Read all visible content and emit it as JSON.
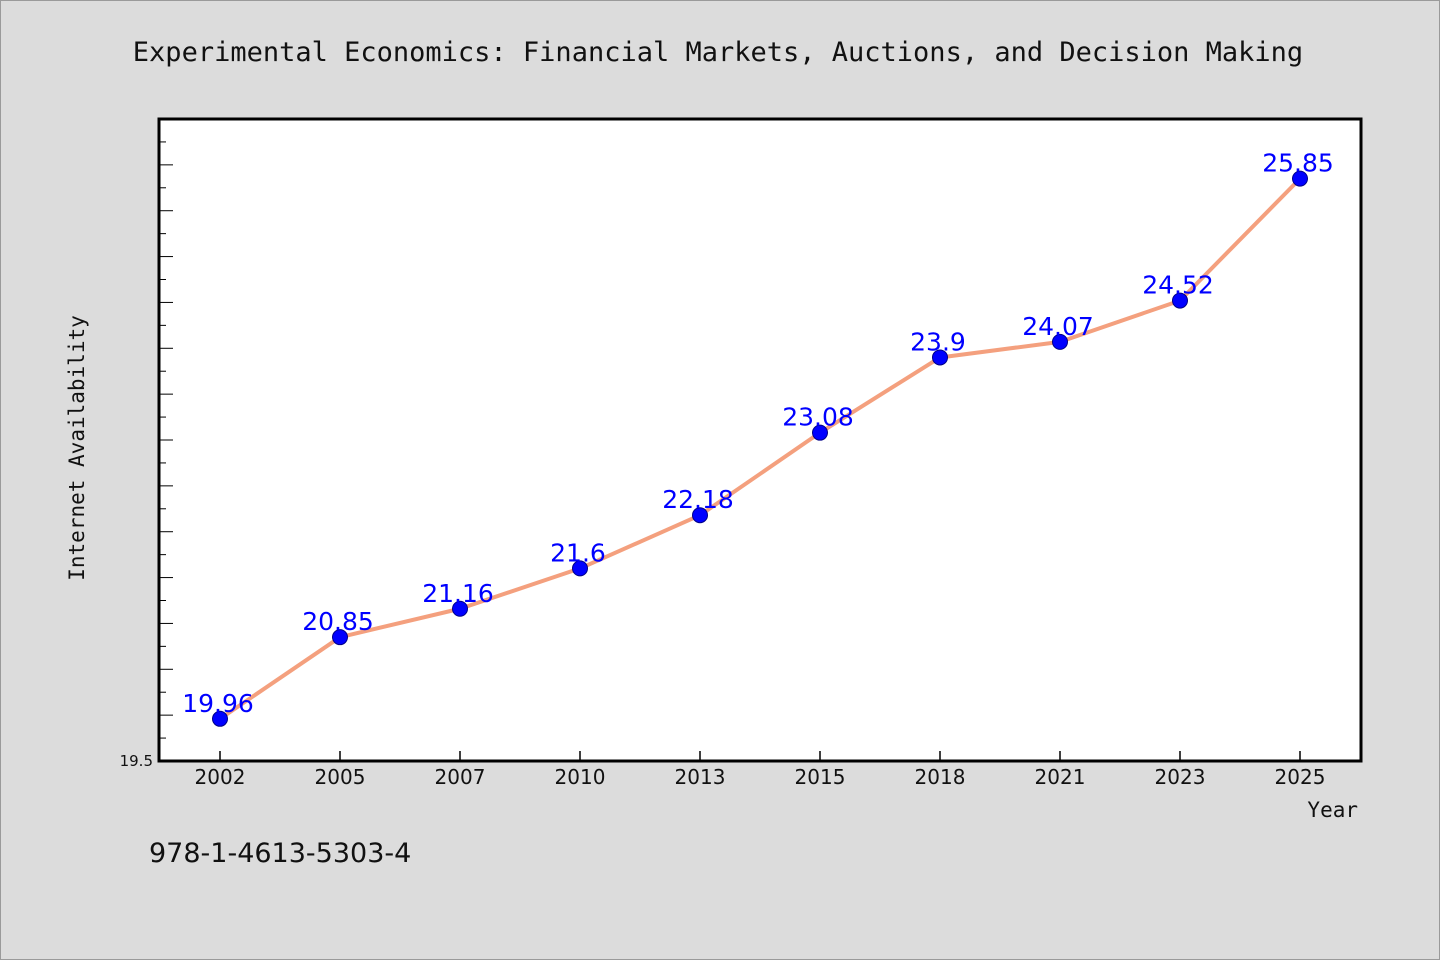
{
  "chart_data": {
    "type": "line",
    "title": "Experimental Economics: Financial Markets, Auctions, and Decision Making",
    "xlabel": "Year",
    "ylabel": "Internet Availability",
    "categories": [
      "2002",
      "2005",
      "2007",
      "2010",
      "2013",
      "2015",
      "2018",
      "2021",
      "2023",
      "2025"
    ],
    "series": [
      {
        "values": [
          19.96,
          20.85,
          21.16,
          21.6,
          22.18,
          23.08,
          23.9,
          24.07,
          24.52,
          25.85
        ],
        "data_labels": [
          "19.96",
          "20.85",
          "21.16",
          "21.6",
          "22.18",
          "23.08",
          "23.9",
          "24.07",
          "24.52",
          "25.85"
        ]
      }
    ],
    "ylim": [
      19.5,
      26.5
    ],
    "y_tick_labels": [
      {
        "value": 19.5,
        "label": "19.5"
      }
    ],
    "grid": false,
    "colors": {
      "line": "#f4a07e",
      "marker": "#0000ff",
      "marker_edge": "#000088",
      "data_label": "#0000ff",
      "background": "#dcdcdc",
      "plot_background": "#ffffff"
    }
  },
  "footer": {
    "isbn": "978-1-4613-5303-4"
  }
}
